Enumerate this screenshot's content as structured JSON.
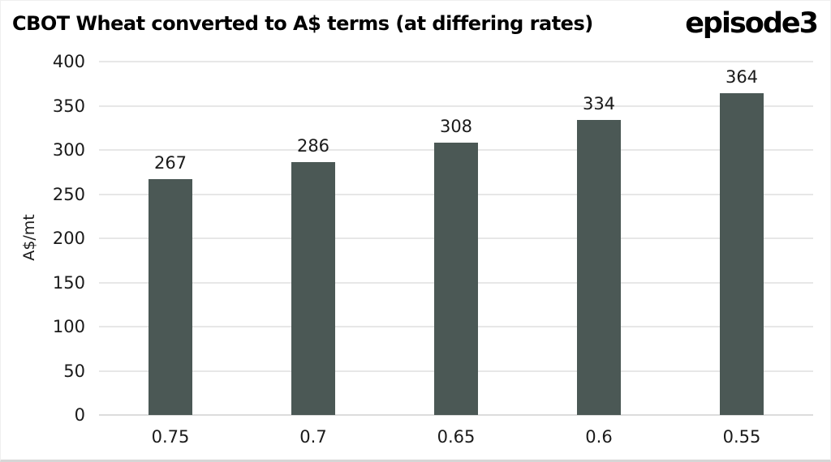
{
  "header": {
    "title": "CBOT Wheat converted to A$ terms (at differing rates)",
    "logo_text": "episode3"
  },
  "chart_data": {
    "type": "bar",
    "title": "CBOT Wheat converted to A$ terms (at differing rates)",
    "categories": [
      "0.75",
      "0.7",
      "0.65",
      "0.6",
      "0.55"
    ],
    "values": [
      267,
      286,
      308,
      334,
      364
    ],
    "xlabel": "",
    "ylabel": "A$/mt",
    "ylim": [
      0,
      400
    ],
    "ytick_step": 50,
    "grid": true,
    "legend": false,
    "colors": {
      "bar": "#4b5855",
      "gridline": "#e7e7e7",
      "axis_line": "#dcdcdc",
      "text": "#1a1a1a",
      "title": "#000000",
      "background": "#ffffff",
      "border": "#d6d6d6"
    }
  }
}
